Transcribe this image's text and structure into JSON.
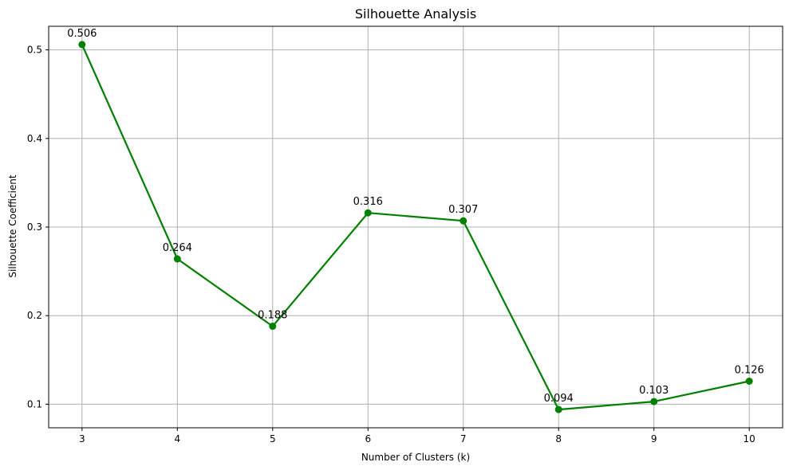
{
  "chart_data": {
    "type": "line",
    "title": "Silhouette Analysis",
    "xlabel": "Number of Clusters (k)",
    "ylabel": "Silhouette Coefficient",
    "x": [
      3,
      4,
      5,
      6,
      7,
      8,
      9,
      10
    ],
    "series": [
      {
        "values": [
          0.506,
          0.264,
          0.188,
          0.316,
          0.307,
          0.094,
          0.103,
          0.126
        ],
        "labels": [
          "0.506",
          "0.264",
          "0.188",
          "0.316",
          "0.307",
          "0.094",
          "0.103",
          "0.126"
        ],
        "color": "#008000",
        "marker": "circle"
      }
    ],
    "xticks": [
      3,
      4,
      5,
      6,
      7,
      8,
      9,
      10
    ],
    "yticks": [
      0.1,
      0.2,
      0.3,
      0.4,
      0.5
    ],
    "ytick_labels": [
      "0.1",
      "0.2",
      "0.3",
      "0.4",
      "0.5"
    ],
    "xlim": [
      2.65,
      10.35
    ],
    "ylim": [
      0.0734,
      0.5266
    ],
    "grid": true,
    "legend": "none"
  }
}
